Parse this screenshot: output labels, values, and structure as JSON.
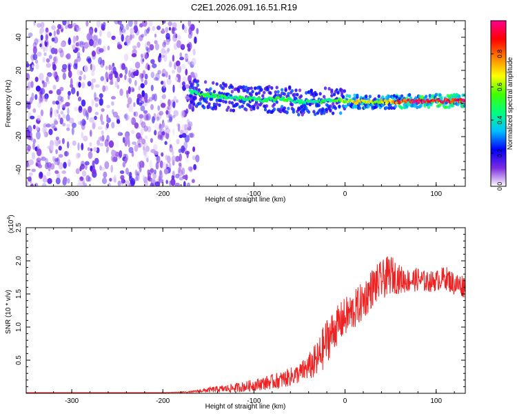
{
  "title": "C2E1.2026.091.16.51.R19",
  "colors": {
    "spectrogram_noise": "#6a1fe0",
    "snr_line": "#ee2222",
    "axis": "#000000"
  },
  "chart_data": [
    {
      "type": "heatmap",
      "xlabel": "Height of straight line (km)",
      "ylabel": "Frequency (Hz)",
      "xlim": [
        -350,
        132
      ],
      "ylim": [
        -50,
        50
      ],
      "x_ticks": [
        -300,
        -200,
        -100,
        0,
        100
      ],
      "y_ticks": [
        -40,
        -20,
        0,
        20,
        40
      ],
      "x_tick_labels": [
        "-300",
        "-200",
        "-100",
        "0",
        "100"
      ],
      "y_tick_labels": [
        "-40",
        "-20",
        "0",
        "20",
        "40"
      ],
      "colorbar": {
        "label": "Normalized spectral amplitude",
        "range": [
          0,
          1
        ],
        "ticks": [
          0.0,
          0.2,
          0.4,
          0.6,
          0.8
        ],
        "tick_labels": [
          "0.0",
          "0.2",
          "0.4",
          "0.6",
          "0.8"
        ],
        "colormap": [
          "#ffffff",
          "#7b2be0",
          "#0000ff",
          "#00c0ff",
          "#00ff80",
          "#40ff00",
          "#ffff00",
          "#ff8000",
          "#ff0000",
          "#ff0090"
        ]
      },
      "noise_region": {
        "x_range": [
          -350,
          -170
        ],
        "amplitude": 0.1
      },
      "signal_track": [
        {
          "x": -170,
          "freq": 7,
          "amp": 0.45
        },
        {
          "x": -150,
          "freq": 5,
          "amp": 0.5
        },
        {
          "x": -130,
          "freq": 4,
          "amp": 0.45
        },
        {
          "x": -110,
          "freq": 3,
          "amp": 0.45
        },
        {
          "x": -90,
          "freq": 2,
          "amp": 0.45
        },
        {
          "x": -70,
          "freq": 3,
          "amp": 0.5
        },
        {
          "x": -50,
          "freq": 1,
          "amp": 0.45
        },
        {
          "x": -30,
          "freq": 1,
          "amp": 0.45
        },
        {
          "x": -10,
          "freq": 2,
          "amp": 0.5
        },
        {
          "x": 10,
          "freq": 1,
          "amp": 0.7
        },
        {
          "x": 30,
          "freq": 1,
          "amp": 0.65
        },
        {
          "x": 50,
          "freq": 1,
          "amp": 0.7
        },
        {
          "x": 70,
          "freq": 1.5,
          "amp": 0.95
        },
        {
          "x": 90,
          "freq": 1.5,
          "amp": 0.95
        },
        {
          "x": 110,
          "freq": 1.5,
          "amp": 0.95
        },
        {
          "x": 130,
          "freq": 1.5,
          "amp": 0.95
        }
      ]
    },
    {
      "type": "line",
      "xlabel": "Height of straight line (km)",
      "ylabel": "SNR (10 * v/v)",
      "y_multiplier": "(x10",
      "y_multiplier_exponent": "4",
      "y_multiplier_close": ")",
      "xlim": [
        -350,
        132
      ],
      "ylim": [
        0,
        2.5
      ],
      "x_ticks": [
        -300,
        -200,
        -100,
        0,
        100
      ],
      "y_ticks": [
        0.5,
        1.0,
        1.5,
        2.0,
        2.5
      ],
      "x_tick_labels": [
        "-300",
        "-200",
        "-100",
        "0",
        "100"
      ],
      "y_tick_labels": [
        "0.5",
        "1.0",
        "1.5",
        "2.0",
        "2.5"
      ],
      "series": [
        {
          "x": [
            -350,
            -300,
            -250,
            -200,
            -170,
            -150,
            -130,
            -110,
            -90,
            -70,
            -50,
            -40,
            -30,
            -20,
            -10,
            0,
            10,
            20,
            30,
            40,
            50,
            60,
            70,
            80,
            90,
            100,
            110,
            120,
            132
          ],
          "y": [
            0.01,
            0.01,
            0.01,
            0.01,
            0.02,
            0.05,
            0.07,
            0.1,
            0.15,
            0.2,
            0.3,
            0.4,
            0.5,
            0.8,
            1.0,
            1.15,
            1.25,
            1.4,
            1.6,
            1.7,
            1.8,
            1.72,
            1.7,
            1.72,
            1.68,
            1.7,
            1.75,
            1.65,
            1.62
          ],
          "noise": [
            0.0,
            0.0,
            0.0,
            0.0,
            0.01,
            0.04,
            0.06,
            0.08,
            0.1,
            0.13,
            0.15,
            0.2,
            0.3,
            0.35,
            0.3,
            0.3,
            0.3,
            0.3,
            0.3,
            0.3,
            0.3,
            0.22,
            0.18,
            0.18,
            0.16,
            0.16,
            0.18,
            0.18,
            0.18
          ]
        }
      ]
    }
  ]
}
